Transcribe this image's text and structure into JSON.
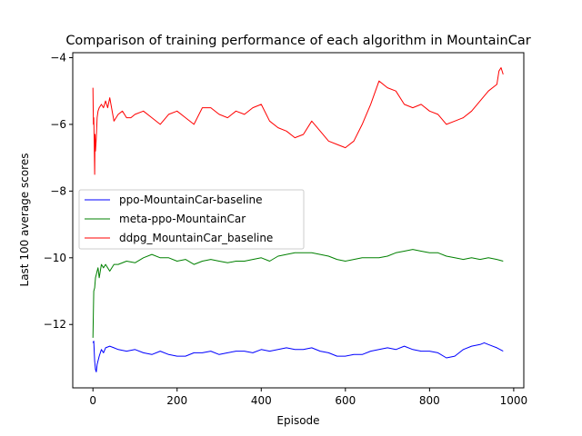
{
  "chart_data": {
    "type": "line",
    "title": "Comparison of training performance of each algorithm in MountainCar",
    "xlabel": "Episode",
    "ylabel": "Last 100 average scores",
    "xlim": [
      -48,
      1024
    ],
    "ylim": [
      -13.9,
      -3.85
    ],
    "xticks": [
      0,
      200,
      400,
      600,
      800,
      1000
    ],
    "yticks": [
      -12,
      -10,
      -8,
      -6,
      -4
    ],
    "grid": false,
    "legend_position": "center-left",
    "series": [
      {
        "name": "ppo-MountainCar-baseline",
        "color": "#0000ff",
        "x": [
          0,
          2,
          4,
          6,
          8,
          10,
          15,
          20,
          25,
          30,
          40,
          50,
          60,
          80,
          100,
          120,
          140,
          160,
          180,
          200,
          220,
          240,
          260,
          280,
          300,
          320,
          340,
          360,
          380,
          400,
          420,
          440,
          460,
          480,
          500,
          520,
          540,
          560,
          580,
          600,
          620,
          640,
          660,
          680,
          700,
          720,
          740,
          760,
          780,
          800,
          820,
          840,
          860,
          880,
          900,
          920,
          930,
          940,
          960,
          975
        ],
        "y": [
          -12.55,
          -12.5,
          -13.1,
          -13.35,
          -13.42,
          -13.2,
          -12.95,
          -12.75,
          -12.85,
          -12.7,
          -12.65,
          -12.7,
          -12.75,
          -12.8,
          -12.75,
          -12.85,
          -12.9,
          -12.8,
          -12.9,
          -12.95,
          -12.95,
          -12.85,
          -12.85,
          -12.8,
          -12.9,
          -12.85,
          -12.8,
          -12.8,
          -12.85,
          -12.75,
          -12.8,
          -12.75,
          -12.7,
          -12.75,
          -12.75,
          -12.7,
          -12.8,
          -12.85,
          -12.95,
          -12.95,
          -12.9,
          -12.9,
          -12.8,
          -12.75,
          -12.7,
          -12.75,
          -12.65,
          -12.75,
          -12.8,
          -12.8,
          -12.85,
          -13.0,
          -12.95,
          -12.75,
          -12.65,
          -12.6,
          -12.55,
          -12.6,
          -12.7,
          -12.8
        ]
      },
      {
        "name": "meta-ppo-MountainCar",
        "color": "#008000",
        "x": [
          0,
          2,
          4,
          6,
          8,
          10,
          12,
          15,
          20,
          25,
          30,
          40,
          50,
          60,
          80,
          100,
          120,
          140,
          160,
          180,
          200,
          220,
          240,
          260,
          280,
          300,
          320,
          340,
          360,
          380,
          400,
          420,
          440,
          460,
          480,
          500,
          520,
          540,
          560,
          580,
          600,
          620,
          640,
          660,
          680,
          700,
          720,
          740,
          760,
          780,
          800,
          820,
          840,
          860,
          880,
          900,
          920,
          940,
          960,
          975
        ],
        "y": [
          -12.4,
          -11.0,
          -10.9,
          -10.6,
          -10.5,
          -10.4,
          -10.3,
          -10.6,
          -10.2,
          -10.3,
          -10.2,
          -10.4,
          -10.2,
          -10.2,
          -10.1,
          -10.15,
          -10.0,
          -9.9,
          -10.0,
          -10.0,
          -10.1,
          -10.05,
          -10.2,
          -10.1,
          -10.05,
          -10.1,
          -10.15,
          -10.1,
          -10.1,
          -10.05,
          -10.0,
          -10.1,
          -9.95,
          -9.9,
          -9.85,
          -9.85,
          -9.85,
          -9.9,
          -9.95,
          -10.05,
          -10.1,
          -10.05,
          -10.0,
          -10.0,
          -10.0,
          -9.95,
          -9.85,
          -9.8,
          -9.75,
          -9.8,
          -9.85,
          -9.85,
          -9.95,
          -10.0,
          -10.05,
          -10.0,
          -10.05,
          -10.0,
          -10.05,
          -10.1
        ]
      },
      {
        "name": "ddpg_MountainCar_baseline",
        "color": "#ff0000",
        "x": [
          0,
          1,
          2,
          3,
          4,
          5,
          6,
          8,
          10,
          12,
          15,
          20,
          25,
          30,
          35,
          40,
          50,
          60,
          70,
          80,
          90,
          100,
          120,
          140,
          160,
          180,
          200,
          220,
          240,
          260,
          280,
          300,
          320,
          340,
          360,
          380,
          400,
          420,
          440,
          460,
          480,
          500,
          520,
          540,
          560,
          580,
          600,
          620,
          640,
          660,
          680,
          700,
          720,
          740,
          760,
          780,
          800,
          820,
          840,
          860,
          880,
          900,
          920,
          940,
          960,
          965,
          970,
          975
        ],
        "y": [
          -4.9,
          -6.0,
          -5.8,
          -6.5,
          -7.5,
          -6.3,
          -6.8,
          -6.4,
          -5.8,
          -5.6,
          -5.5,
          -5.4,
          -5.5,
          -5.3,
          -5.5,
          -5.2,
          -5.9,
          -5.7,
          -5.6,
          -5.8,
          -5.8,
          -5.7,
          -5.6,
          -5.8,
          -6.0,
          -5.7,
          -5.6,
          -5.8,
          -6.0,
          -5.5,
          -5.5,
          -5.7,
          -5.8,
          -5.6,
          -5.7,
          -5.5,
          -5.4,
          -5.9,
          -6.1,
          -6.2,
          -6.4,
          -6.3,
          -5.9,
          -6.2,
          -6.5,
          -6.6,
          -6.7,
          -6.5,
          -6.0,
          -5.4,
          -4.7,
          -4.9,
          -5.0,
          -5.4,
          -5.5,
          -5.4,
          -5.6,
          -5.7,
          -6.0,
          -5.9,
          -5.8,
          -5.6,
          -5.3,
          -5.0,
          -4.8,
          -4.4,
          -4.3,
          -4.5
        ]
      }
    ]
  }
}
